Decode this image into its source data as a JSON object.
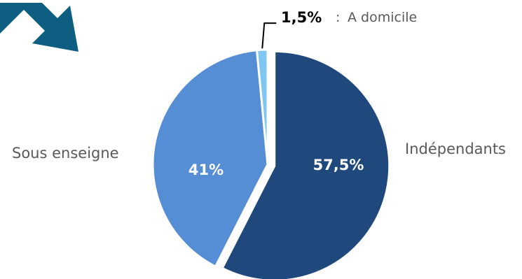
{
  "chart_data": {
    "type": "pie",
    "slices": [
      {
        "label": "Indépendants",
        "value": 57.5,
        "value_label": "57,5%",
        "color": "#1F497D",
        "exploded": true
      },
      {
        "label": "Sous enseigne",
        "value": 41,
        "value_label": "41%",
        "color": "#558ED5",
        "exploded": false
      },
      {
        "label": "A domicile",
        "value": 1.5,
        "value_label": "1,5%",
        "color": "#7FC7F2",
        "exploded": false
      }
    ],
    "annotations": {
      "domicile_separator": ": "
    }
  },
  "colors": {
    "arrow": "#0E5E82",
    "label_text": "#595959",
    "value_text_inside": "#ffffff",
    "value_text_outside": "#000000"
  },
  "decoration": {
    "arrow_icon": "arrow-down-right-icon"
  }
}
